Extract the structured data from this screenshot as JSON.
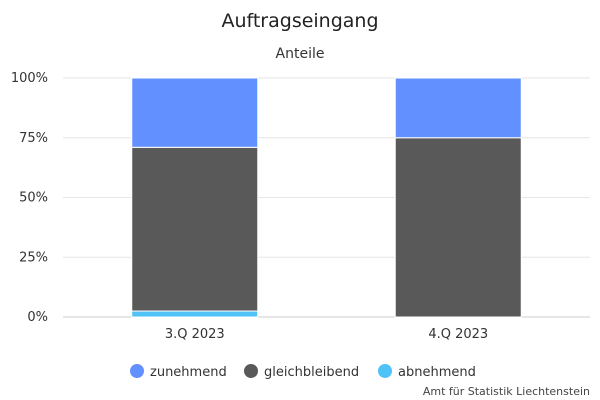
{
  "chart_data": {
    "type": "bar",
    "stacked": true,
    "title": "Auftragseingang",
    "subtitle": "Anteile",
    "categories": [
      "3.Q 2023",
      "4.Q 2023"
    ],
    "series": [
      {
        "name": "abnehmend",
        "values": [
          2.5,
          0
        ],
        "color": "#4fc3f7"
      },
      {
        "name": "gleichbleibend",
        "values": [
          68.5,
          75
        ],
        "color": "#595959"
      },
      {
        "name": "zunehmend",
        "values": [
          29,
          25
        ],
        "color": "#6390ff"
      }
    ],
    "y_ticks": [
      "0%",
      "25%",
      "50%",
      "75%",
      "100%"
    ],
    "ylim": [
      0,
      100
    ],
    "grid": true,
    "legend_position": "bottom",
    "legend_order": [
      "zunehmend",
      "gleichbleibend",
      "abnehmend"
    ]
  },
  "credit": "Amt für Statistik Liechtenstein"
}
